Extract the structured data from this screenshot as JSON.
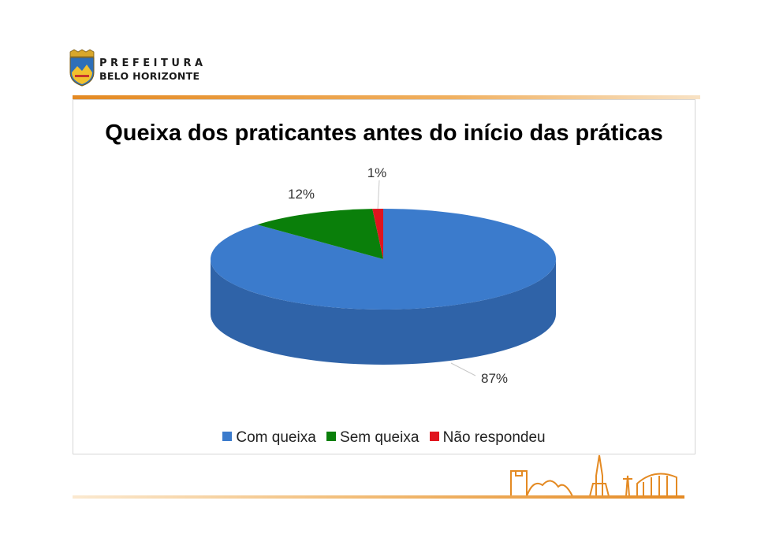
{
  "header": {
    "logo_line1": "PREFEITURA",
    "logo_line2": "BELO HORIZONTE"
  },
  "colors": {
    "accent_orange": "#e48a23",
    "com_queixa": "#3b7bcc",
    "sem_queixa": "#0a7f0a",
    "nao_respondeu": "#e0141e"
  },
  "chart_data": {
    "type": "pie",
    "three_d": true,
    "title": "Queixa dos praticantes antes do início das práticas",
    "categories": [
      "Com queixa",
      "Sem queixa",
      "Não respondeu"
    ],
    "values": [
      87,
      12,
      1
    ],
    "data_labels": [
      "87%",
      "12%",
      "1%"
    ],
    "legend_position": "bottom"
  }
}
